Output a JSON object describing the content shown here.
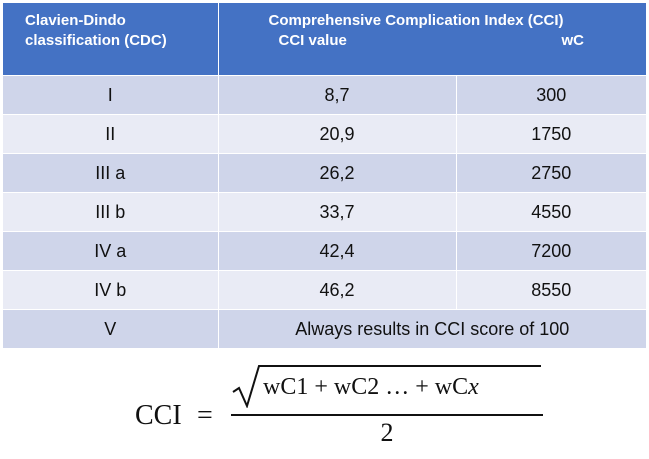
{
  "header": {
    "col1_line1": "Clavien-Dindo",
    "col1_line2": "classification (CDC)",
    "group_title": "Comprehensive Complication Index (CCI)",
    "cci_label": "CCI value",
    "wc_label": "wC"
  },
  "rows": [
    {
      "grade": "I",
      "cci": "8,7",
      "wc": "300"
    },
    {
      "grade": "II",
      "cci": "20,9",
      "wc": "1750"
    },
    {
      "grade": "III a",
      "cci": "26,2",
      "wc": "2750"
    },
    {
      "grade": "III b",
      "cci": "33,7",
      "wc": "4550"
    },
    {
      "grade": "IV a",
      "cci": "42,4",
      "wc": "7200"
    },
    {
      "grade": "IV b",
      "cci": "46,2",
      "wc": "8550"
    }
  ],
  "last_row": {
    "grade": "V",
    "note": "Always results in CCI score of 100"
  },
  "formula": {
    "lhs": "CCI",
    "equals": "=",
    "numerator_main": "wC1 + wC2 … + wC",
    "numerator_var": "x",
    "denominator": "2"
  },
  "colors": {
    "header_bg": "#4472c4",
    "row_dark": "#cfd5ea",
    "row_light": "#e9ebf5"
  }
}
